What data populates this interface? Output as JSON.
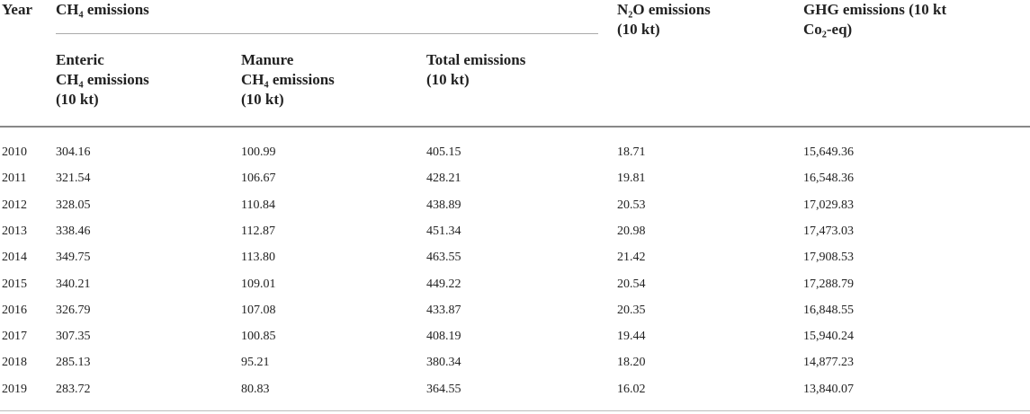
{
  "table": {
    "header": {
      "year": "Year",
      "ch4_group": "CH₄ emissions",
      "enteric": [
        "Enteric",
        "CH₄ emissions",
        "(10 kt)"
      ],
      "manure": [
        "Manure",
        "CH₄ emissions",
        "(10 kt)"
      ],
      "total": [
        "Total emissions",
        "(10 kt)"
      ],
      "n2o": [
        "N₂O emissions",
        "(10 kt)"
      ],
      "ghg": [
        "GHG emissions (10 kt",
        "Co₂-eq)"
      ]
    },
    "rows": [
      [
        "2010",
        "304.16",
        "100.99",
        "405.15",
        "18.71",
        "15,649.36"
      ],
      [
        "2011",
        "321.54",
        "106.67",
        "428.21",
        "19.81",
        "16,548.36"
      ],
      [
        "2012",
        "328.05",
        "110.84",
        "438.89",
        "20.53",
        "17,029.83"
      ],
      [
        "2013",
        "338.46",
        "112.87",
        "451.34",
        "20.98",
        "17,473.03"
      ],
      [
        "2014",
        "349.75",
        "113.80",
        "463.55",
        "21.42",
        "17,908.53"
      ],
      [
        "2015",
        "340.21",
        "109.01",
        "449.22",
        "20.54",
        "17,288.79"
      ],
      [
        "2016",
        "326.79",
        "107.08",
        "433.87",
        "20.35",
        "16,848.55"
      ],
      [
        "2017",
        "307.35",
        "100.85",
        "408.19",
        "19.44",
        "15,940.24"
      ],
      [
        "2018",
        "285.13",
        "95.21",
        "380.34",
        "18.20",
        "14,877.23"
      ],
      [
        "2019",
        "283.72",
        "80.83",
        "364.55",
        "16.02",
        "13,840.07"
      ]
    ]
  }
}
